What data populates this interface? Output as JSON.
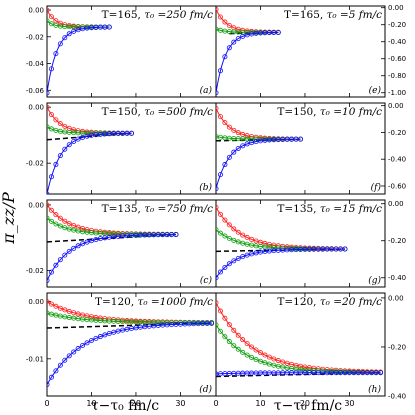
{
  "figure": {
    "ylabel": "π_zz/P",
    "xlabel_left": "τ−τ₀  fm/c",
    "xlabel_right": "τ−τ₀  fm/c"
  },
  "colors": {
    "red": "#ff2020",
    "green": "#10a010",
    "blue": "#1010ff",
    "black": "#000000"
  },
  "chart_data": [
    {
      "type": "line",
      "panel_label": "(a)",
      "title_T": "T=165,",
      "title_tau": "τ₀ =250 fm/c",
      "col": 0,
      "row": 0,
      "xlim": [
        0,
        38
      ],
      "ylim": [
        -0.065,
        0.003
      ],
      "yticks": [
        0.0,
        -0.02,
        -0.04,
        -0.06
      ],
      "ytick_labels": [
        "0.00",
        "-0.02",
        "-0.04",
        "-0.06"
      ],
      "xticks": [
        0,
        10,
        20,
        30
      ],
      "x_end": 14,
      "asym": -0.0127,
      "init": {
        "red": 0.0,
        "green": -0.008,
        "blue": -0.062
      },
      "taus": {
        "red": 2.0,
        "green": 1.5,
        "blue": 2.2
      },
      "ns_from": null
    },
    {
      "type": "line",
      "panel_label": "(e)",
      "title_T": "T=165,",
      "title_tau": "τ₀ =5 fm/c",
      "col": 1,
      "row": 0,
      "xlim": [
        0,
        38
      ],
      "ylim": [
        -1.05,
        0.02
      ],
      "yticks": [
        0.0,
        -0.2,
        -0.4,
        -0.6,
        -0.8,
        -1.0
      ],
      "ytick_labels": [
        "0.00",
        "-0.20",
        "-0.40",
        "-0.60",
        "-0.80",
        "-1.00"
      ],
      "xticks": [
        0,
        10,
        20,
        30
      ],
      "x_end": 14,
      "asym": -0.29,
      "init": {
        "red": -0.02,
        "green": -0.25,
        "blue": -1.0
      },
      "taus": {
        "red": 2.5,
        "green": 2.0,
        "blue": 2.2
      },
      "ns_from": 3
    },
    {
      "type": "line",
      "panel_label": "(b)",
      "title_T": "T=150,",
      "title_tau": "τ₀ =500 fm/c",
      "col": 0,
      "row": 1,
      "xlim": [
        0,
        38
      ],
      "ylim": [
        -0.031,
        0.0015
      ],
      "yticks": [
        0.0,
        -0.02
      ],
      "ytick_labels": [
        "0.00",
        "-0.02"
      ],
      "xticks": [
        0,
        10,
        20,
        30
      ],
      "x_end": 19,
      "asym": -0.0093,
      "init": {
        "red": 0.0,
        "green": -0.007,
        "blue": -0.031
      },
      "taus": {
        "red": 3.0,
        "green": 2.5,
        "blue": 3.0
      },
      "ns_from": 0
    },
    {
      "type": "line",
      "panel_label": "(f)",
      "title_T": "T=150,",
      "title_tau": "τ₀ =10 fm/c",
      "col": 1,
      "row": 1,
      "xlim": [
        0,
        38
      ],
      "ylim": [
        -0.66,
        0.02
      ],
      "yticks": [
        0.0,
        -0.2,
        -0.4,
        -0.6
      ],
      "ytick_labels": [
        "0.00",
        "-0.20",
        "-0.40",
        "-0.60"
      ],
      "xticks": [
        0,
        10,
        20,
        30
      ],
      "x_end": 19,
      "asym": -0.25,
      "init": {
        "red": -0.02,
        "green": -0.23,
        "blue": -0.62
      },
      "taus": {
        "red": 3.2,
        "green": 2.8,
        "blue": 3.0
      },
      "ns_from": 0
    },
    {
      "type": "line",
      "panel_label": "(c)",
      "title_T": "T=135,",
      "title_tau": "τ₀ =750 fm/c",
      "col": 0,
      "row": 2,
      "xlim": [
        0,
        38
      ],
      "ylim": [
        -0.025,
        0.0015
      ],
      "yticks": [
        0.0,
        -0.02
      ],
      "ytick_labels": [
        "0.00",
        "-0.02"
      ],
      "xticks": [
        0,
        10,
        20,
        30
      ],
      "x_end": 29,
      "asym": -0.009,
      "init": {
        "red": 0.0,
        "green": -0.004,
        "blue": -0.023
      },
      "taus": {
        "red": 5.0,
        "green": 4.5,
        "blue": 5.0
      },
      "ns_from": 0
    },
    {
      "type": "line",
      "panel_label": "(g)",
      "title_T": "T=135,",
      "title_tau": "τ₀ =15 fm/c",
      "col": 1,
      "row": 2,
      "xlim": [
        0,
        38
      ],
      "ylim": [
        -0.45,
        0.02
      ],
      "yticks": [
        0.0,
        -0.2,
        -0.4
      ],
      "ytick_labels": [
        "0.00",
        "-0.20",
        "-0.40"
      ],
      "xticks": [
        0,
        10,
        20,
        30
      ],
      "x_end": 29,
      "asym": -0.245,
      "init": {
        "red": -0.02,
        "green": -0.14,
        "blue": -0.4
      },
      "taus": {
        "red": 5.5,
        "green": 5.0,
        "blue": 4.5
      },
      "ns_from": 0
    },
    {
      "type": "line",
      "panel_label": "(d)",
      "title_T": "T=120,",
      "title_tau": "τ₀ =1000 fm/c",
      "col": 0,
      "row": 3,
      "xlim": [
        0,
        38
      ],
      "ylim": [
        -0.0165,
        0.0015
      ],
      "yticks": [
        0.0,
        -0.01
      ],
      "ytick_labels": [
        "0.00",
        "-0.01"
      ],
      "xticks": [
        0,
        10,
        20,
        30
      ],
      "x_end": 37,
      "asym": -0.0037,
      "init": {
        "red": 0.0,
        "green": -0.002,
        "blue": -0.0145
      },
      "taus": {
        "red": 8.0,
        "green": 8.0,
        "blue": 8.0
      },
      "ns_from": 0
    },
    {
      "type": "line",
      "panel_label": "(h)",
      "title_T": "T=120,",
      "title_tau": "τ₀ =20 fm/c",
      "col": 1,
      "row": 3,
      "xlim": [
        0,
        38
      ],
      "ylim": [
        -0.4,
        0.02
      ],
      "yticks": [
        0.0,
        -0.2,
        -0.4
      ],
      "ytick_labels": [
        "0.00",
        "-0.20",
        "-0.40"
      ],
      "xticks": [
        0,
        10,
        20,
        30
      ],
      "x_end": 37,
      "asym": -0.305,
      "init": {
        "red": -0.02,
        "green": -0.11,
        "blue": -0.31
      },
      "taus": {
        "red": 8.0,
        "green": 7.0,
        "blue": 6.0
      },
      "ns_from": 0
    }
  ]
}
